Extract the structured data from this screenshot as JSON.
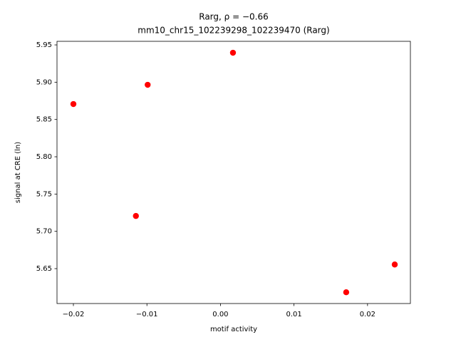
{
  "chart_data": {
    "type": "scatter",
    "title": "Rarg, ρ = −0.66",
    "subtitle": "mm10_chr15_102239298_102239470 (Rarg)",
    "x_label": "motif activity",
    "y_label": "signal at CRE (ln)",
    "color": "#ff0000",
    "x": [
      -0.02,
      -0.0099,
      -0.0115,
      0.0017,
      0.0171,
      0.0237
    ],
    "values": [
      5.8707,
      5.8965,
      5.7206,
      5.9395,
      5.6183,
      5.6555
    ],
    "xlim": [
      -0.02223,
      0.02583
    ],
    "ylim": [
      5.6032,
      5.9548
    ],
    "xticks": [
      {
        "value": -0.02,
        "label": "−0.02"
      },
      {
        "value": -0.01,
        "label": "−0.01"
      },
      {
        "value": 0,
        "label": "0.00"
      },
      0.01,
      0.02
    ],
    "yticks": [
      5.65,
      {
        "value": 5.7,
        "label": "5.70"
      },
      5.75,
      {
        "value": 5.8,
        "label": "5.80"
      },
      5.85,
      {
        "value": 5.9,
        "label": "5.90"
      },
      5.95
    ],
    "grid": false
  }
}
